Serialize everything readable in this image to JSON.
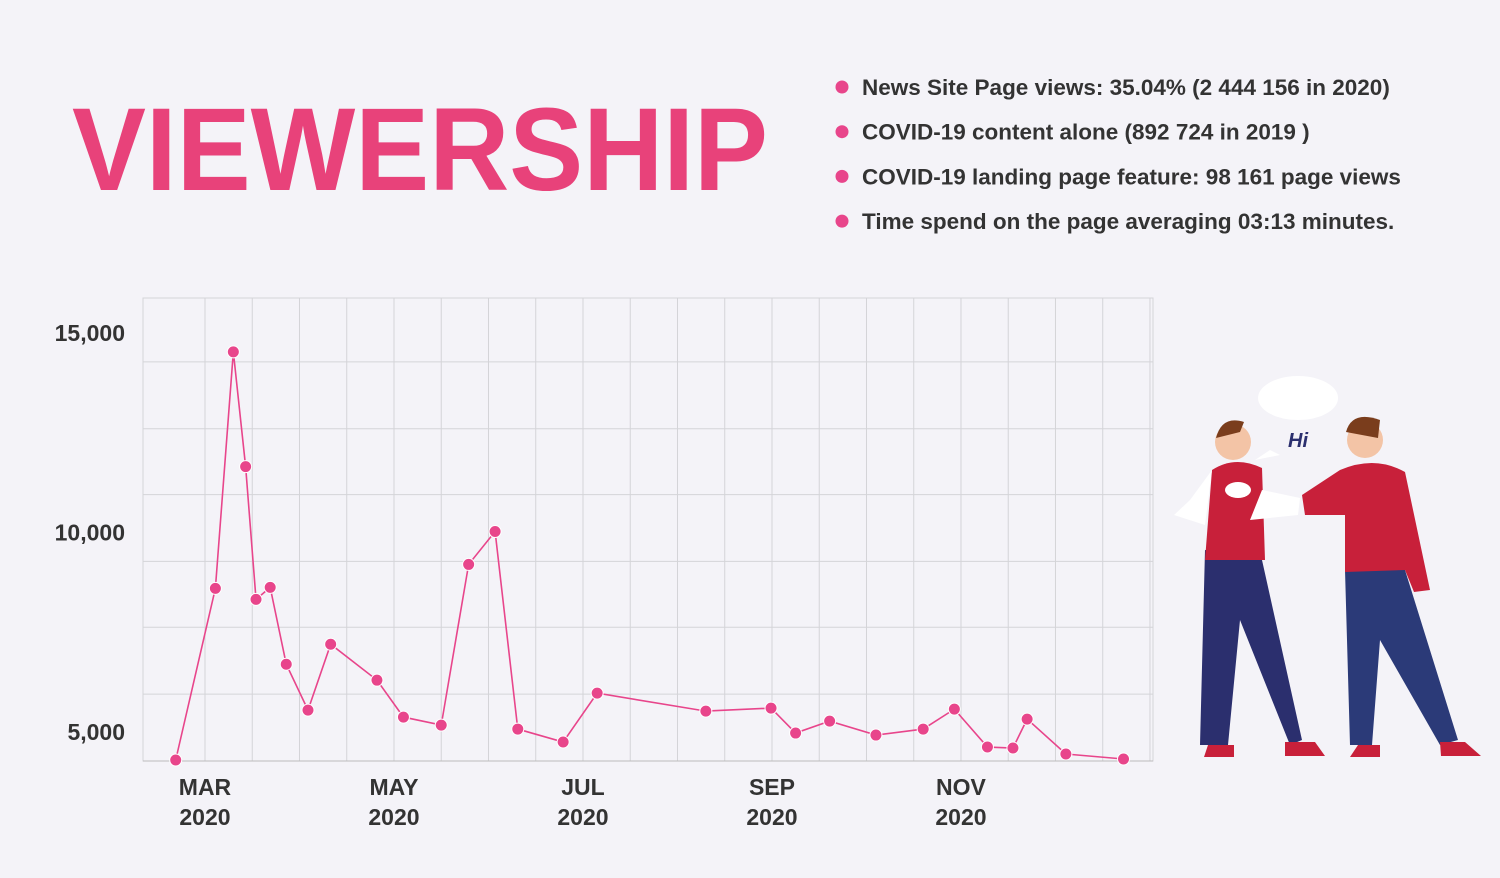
{
  "title": "VIEWERSHIP",
  "bullets": [
    "News Site Page views: 35.04% (2 444 156 in 2020)",
    "COVID-19 content alone (892 724 in 2019 )",
    "COVID-19 landing page feature: 98 161 page views",
    "Time spend on the page averaging 03:13 minutes."
  ],
  "speech": "Hi",
  "chart_data": {
    "type": "line",
    "color": "#e8458b",
    "x": [
      2.69,
      3.11,
      3.3,
      3.43,
      3.54,
      3.69,
      3.86,
      4.09,
      4.33,
      4.82,
      5.1,
      5.5,
      5.79,
      6.07,
      6.31,
      6.79,
      7.15,
      8.3,
      8.99,
      9.25,
      9.61,
      10.1,
      10.6,
      10.93,
      11.28,
      11.55,
      11.7,
      12.11,
      12.72
    ],
    "values": [
      4300,
      8600,
      14525,
      11650,
      8325,
      8625,
      6700,
      5550,
      7200,
      6300,
      5375,
      5175,
      9200,
      10025,
      5075,
      4750,
      5975,
      5525,
      5600,
      4975,
      5275,
      4925,
      5075,
      5575,
      4625,
      4600,
      5325,
      4450,
      4325
    ],
    "xlim": [
      2.344,
      13.032
    ],
    "xticks": [
      {
        "value": 3,
        "label": "MAR 2020"
      },
      {
        "value": 5,
        "label": "MAY 2020"
      },
      {
        "value": 7,
        "label": "JUL 2020"
      },
      {
        "value": 9,
        "label": "SEP 2020"
      },
      {
        "value": 11,
        "label": "NOV 2020"
      }
    ],
    "xgrid": [
      3,
      3.5,
      4,
      4.5,
      5,
      5.5,
      6,
      6.5,
      7,
      7.5,
      8,
      8.5,
      9,
      9.5,
      10,
      10.5,
      11,
      11.5,
      12,
      12.5,
      13
    ],
    "ylim": [
      4275,
      15875
    ],
    "yticks": [
      {
        "value": 5000,
        "label": "5,000"
      },
      {
        "value": 10000,
        "label": "10,000"
      },
      {
        "value": 15000,
        "label": "15,000"
      }
    ],
    "ygrid": [
      5950,
      7625,
      9275,
      10950,
      12600,
      14275
    ],
    "grid": true
  }
}
